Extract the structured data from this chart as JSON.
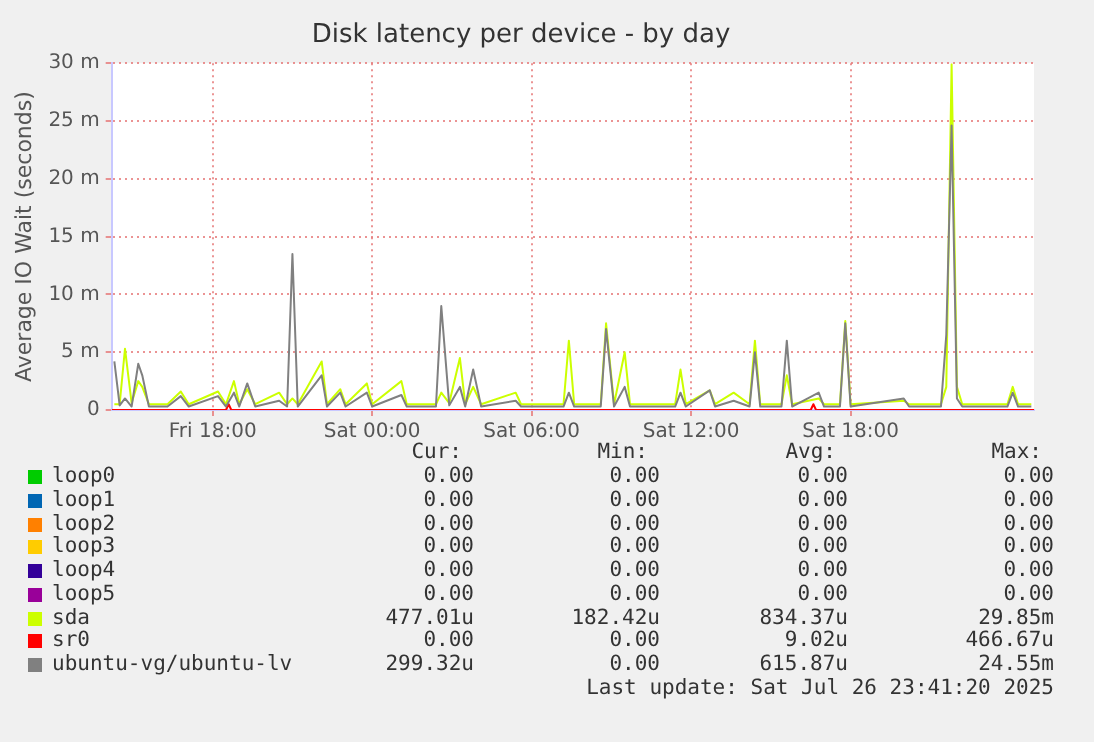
{
  "chart_data": {
    "type": "line",
    "title": "Disk latency per device - by day",
    "ylabel": "Average IO Wait (seconds)",
    "x": [
      "2025-07-25T14:18",
      "2025-07-25T14:30",
      "2025-07-25T14:42",
      "2025-07-25T14:57",
      "2025-07-25T15:12",
      "2025-07-25T15:21",
      "2025-07-25T15:36",
      "2025-07-25T16:18",
      "2025-07-25T16:48",
      "2025-07-25T17:06",
      "2025-07-25T18:12",
      "2025-07-25T18:30",
      "2025-07-25T18:48",
      "2025-07-25T19:00",
      "2025-07-25T19:18",
      "2025-07-25T19:36",
      "2025-07-25T20:30",
      "2025-07-25T20:48",
      "2025-07-25T21:00",
      "2025-07-25T21:12",
      "2025-07-25T22:06",
      "2025-07-25T22:18",
      "2025-07-25T22:48",
      "2025-07-25T23:00",
      "2025-07-25T23:48",
      "2025-07-26T00:00",
      "2025-07-26T01:06",
      "2025-07-26T01:18",
      "2025-07-26T02:24",
      "2025-07-26T02:36",
      "2025-07-26T02:54",
      "2025-07-26T03:18",
      "2025-07-26T03:30",
      "2025-07-26T03:48",
      "2025-07-26T04:06",
      "2025-07-26T05:24",
      "2025-07-26T05:36",
      "2025-07-26T07:12",
      "2025-07-26T07:24",
      "2025-07-26T07:36",
      "2025-07-26T08:36",
      "2025-07-26T08:48",
      "2025-07-26T09:06",
      "2025-07-26T09:30",
      "2025-07-26T09:42",
      "2025-07-26T11:24",
      "2025-07-26T11:36",
      "2025-07-26T11:48",
      "2025-07-26T12:42",
      "2025-07-26T12:54",
      "2025-07-26T13:36",
      "2025-07-26T14:12",
      "2025-07-26T14:24",
      "2025-07-26T14:36",
      "2025-07-26T15:24",
      "2025-07-26T15:36",
      "2025-07-26T15:48",
      "2025-07-26T16:48",
      "2025-07-26T17:00",
      "2025-07-26T17:36",
      "2025-07-26T17:48",
      "2025-07-26T18:00",
      "2025-07-26T20:00",
      "2025-07-26T20:12",
      "2025-07-26T21:24",
      "2025-07-26T21:36",
      "2025-07-26T21:48",
      "2025-07-26T22:00",
      "2025-07-26T22:12",
      "2025-07-26T23:54",
      "2025-07-27T00:06",
      "2025-07-27T00:18",
      "2025-07-27T00:48"
    ],
    "series": [
      {
        "name": "loop0",
        "color": "#00cc00",
        "values": [
          null,
          null,
          null,
          null,
          null,
          null,
          null,
          null,
          null,
          null,
          null,
          null,
          null,
          null,
          null,
          null,
          null,
          null,
          null,
          null,
          null,
          null,
          null,
          null,
          null,
          null,
          null,
          null,
          null,
          null,
          null,
          null,
          null,
          null,
          null,
          null,
          null,
          null,
          null,
          null,
          null,
          null,
          null,
          null,
          null,
          null,
          null,
          null,
          null,
          null,
          null,
          null,
          null,
          null,
          null,
          null,
          null,
          null,
          null,
          null,
          null,
          null,
          null,
          null,
          null,
          null,
          null,
          null,
          null,
          null,
          null,
          null,
          null
        ]
      },
      {
        "name": "loop1",
        "color": "#0066b3",
        "values": [
          null,
          null,
          null,
          null,
          null,
          null,
          null,
          null,
          null,
          null,
          null,
          null,
          null,
          null,
          null,
          null,
          null,
          null,
          null,
          null,
          null,
          null,
          null,
          null,
          null,
          null,
          null,
          null,
          null,
          null,
          null,
          null,
          null,
          null,
          null,
          null,
          null,
          null,
          null,
          null,
          null,
          null,
          null,
          null,
          null,
          null,
          null,
          null,
          null,
          null,
          null,
          null,
          null,
          null,
          null,
          null,
          null,
          null,
          null,
          null,
          null,
          null,
          null,
          null,
          null,
          null,
          null,
          null,
          null,
          null,
          null,
          null,
          null
        ]
      },
      {
        "name": "loop2",
        "color": "#ff8000",
        "values": [
          null,
          null,
          null,
          null,
          null,
          null,
          null,
          null,
          null,
          null,
          null,
          null,
          null,
          null,
          null,
          null,
          null,
          null,
          null,
          null,
          null,
          null,
          null,
          null,
          null,
          null,
          null,
          null,
          null,
          null,
          null,
          null,
          null,
          null,
          null,
          null,
          null,
          null,
          null,
          null,
          null,
          null,
          null,
          null,
          null,
          null,
          null,
          null,
          null,
          null,
          null,
          null,
          null,
          null,
          null,
          null,
          null,
          null,
          null,
          null,
          null,
          null,
          null,
          null,
          null,
          null,
          null,
          null,
          null,
          null,
          null,
          null,
          null
        ]
      },
      {
        "name": "loop3",
        "color": "#ffcc00",
        "values": [
          null,
          null,
          null,
          null,
          null,
          null,
          null,
          null,
          null,
          null,
          null,
          null,
          null,
          null,
          null,
          null,
          null,
          null,
          null,
          null,
          null,
          null,
          null,
          null,
          null,
          null,
          null,
          null,
          null,
          null,
          null,
          null,
          null,
          null,
          null,
          null,
          null,
          null,
          null,
          null,
          null,
          null,
          null,
          null,
          null,
          null,
          null,
          null,
          null,
          null,
          null,
          null,
          null,
          null,
          null,
          null,
          null,
          null,
          null,
          null,
          null,
          null,
          null,
          null,
          null,
          null,
          null,
          null,
          null,
          null,
          null,
          null,
          null
        ]
      },
      {
        "name": "loop4",
        "color": "#330099",
        "values": [
          null,
          null,
          null,
          null,
          null,
          null,
          null,
          null,
          null,
          null,
          null,
          null,
          null,
          null,
          null,
          null,
          null,
          null,
          null,
          null,
          null,
          null,
          null,
          null,
          null,
          null,
          null,
          null,
          null,
          null,
          null,
          null,
          null,
          null,
          null,
          null,
          null,
          null,
          null,
          null,
          null,
          null,
          null,
          null,
          null,
          null,
          null,
          null,
          null,
          null,
          null,
          null,
          null,
          null,
          null,
          null,
          null,
          null,
          null,
          null,
          null,
          null,
          null,
          null,
          null,
          null,
          null,
          null,
          null,
          null,
          null,
          null,
          null
        ]
      },
      {
        "name": "loop5",
        "color": "#990099",
        "values": [
          null,
          null,
          null,
          null,
          null,
          null,
          null,
          null,
          null,
          null,
          null,
          null,
          null,
          null,
          null,
          null,
          null,
          null,
          null,
          null,
          null,
          null,
          null,
          null,
          null,
          null,
          null,
          null,
          null,
          null,
          null,
          null,
          null,
          null,
          null,
          null,
          null,
          null,
          null,
          null,
          null,
          null,
          null,
          null,
          null,
          null,
          null,
          null,
          null,
          null,
          null,
          null,
          null,
          null,
          null,
          null,
          null,
          null,
          null,
          null,
          null,
          null,
          null,
          null,
          null,
          null,
          null,
          null,
          null,
          null,
          null,
          null,
          null
        ]
      },
      {
        "name": "sda",
        "color": "#ccff00",
        "values": [
          0.5,
          0.5,
          5.3,
          0.6,
          2.5,
          2,
          0.5,
          0.5,
          1.6,
          0.5,
          1.6,
          0.5,
          2.5,
          0.5,
          1.8,
          0.5,
          1.5,
          0.5,
          1,
          0.5,
          4.2,
          0.5,
          1.8,
          0.5,
          2.3,
          0.5,
          2.5,
          0.5,
          0.5,
          1.5,
          0.6,
          4.5,
          0.5,
          2,
          0.5,
          1.5,
          0.5,
          0.5,
          6,
          0.5,
          0.5,
          7.5,
          0.5,
          5,
          0.5,
          0.5,
          3.5,
          0.5,
          1.7,
          0.5,
          1.5,
          0.5,
          6,
          0.5,
          0.5,
          3,
          0.5,
          1,
          0.5,
          0.5,
          7.7,
          0.5,
          0.8,
          0.5,
          0.5,
          2,
          29.9,
          2,
          0.5,
          0.5,
          2,
          0.5,
          0.5
        ]
      },
      {
        "name": "sr0",
        "color": "#ff0000",
        "x": [
          "2025-07-25T14:12",
          "2025-07-25T18:30",
          "2025-07-25T18:36",
          "2025-07-25T18:42",
          "2025-07-26T16:30",
          "2025-07-26T16:36",
          "2025-07-26T16:42",
          "2025-07-27T00:54"
        ],
        "values": [
          0,
          0,
          0.5,
          0,
          0,
          0.5,
          0,
          0
        ]
      },
      {
        "name": "ubuntu-vg/ubuntu-lv",
        "color": "#808080",
        "values": [
          4.2,
          0.4,
          1,
          0.3,
          4,
          3,
          0.3,
          0.3,
          1.2,
          0.3,
          1.2,
          0.3,
          1.5,
          0.3,
          2.3,
          0.3,
          0.8,
          0.3,
          13.5,
          0.3,
          3,
          0.3,
          1.5,
          0.3,
          1.5,
          0.3,
          1.3,
          0.3,
          0.3,
          9,
          0.4,
          2,
          0.3,
          3.5,
          0.3,
          0.8,
          0.3,
          0.3,
          1.5,
          0.3,
          0.3,
          7,
          0.3,
          2,
          0.3,
          0.3,
          1.5,
          0.3,
          1.7,
          0.3,
          0.8,
          0.3,
          5,
          0.3,
          0.3,
          6,
          0.3,
          1.5,
          0.3,
          0.3,
          7.5,
          0.3,
          1,
          0.3,
          0.3,
          6.5,
          24.6,
          1,
          0.3,
          0.3,
          1.5,
          0.3,
          0.3
        ]
      }
    ],
    "xlim": [
      "2025-07-25T14:12",
      "2025-07-27T00:54"
    ],
    "xticks": [
      {
        "value": "2025-07-25T18:00",
        "label": "Fri 18:00"
      },
      {
        "value": "2025-07-26T00:00",
        "label": "Sat 00:00"
      },
      {
        "value": "2025-07-26T06:00",
        "label": "Sat 06:00"
      },
      {
        "value": "2025-07-26T12:00",
        "label": "Sat 12:00"
      },
      {
        "value": "2025-07-26T18:00",
        "label": "Sat 18:00"
      }
    ],
    "ylim": [
      0,
      30
    ],
    "yticks": [
      0,
      {
        "value": 5,
        "label": "5 m"
      },
      {
        "value": 10,
        "label": "10 m"
      },
      {
        "value": 15,
        "label": "15 m"
      },
      {
        "value": 20,
        "label": "20 m"
      },
      {
        "value": 25,
        "label": "25 m"
      },
      {
        "value": 30,
        "label": "30 m"
      }
    ],
    "grid": true,
    "legend": "bottom",
    "annotations": [
      "Cur:",
      "Min:",
      "Avg:",
      "Max:",
      "0.00",
      "0.00",
      "0.00",
      "0.00",
      "0.00",
      "0.00",
      "0.00",
      "0.00",
      "0.00",
      "0.00",
      "0.00",
      "0.00",
      "0.00",
      "0.00",
      "0.00",
      "0.00",
      "0.00",
      "0.00",
      "0.00",
      "0.00",
      "0.00",
      "0.00",
      "0.00",
      "0.00",
      "477.01u",
      "182.42u",
      "834.37u",
      "29.85m",
      "0.00",
      "0.00",
      "9.02u",
      "466.67u",
      "299.32u",
      "0.00",
      "615.87u",
      "24.55m",
      "Last update: Sat Jul 26 23:41:20 2025"
    ]
  }
}
